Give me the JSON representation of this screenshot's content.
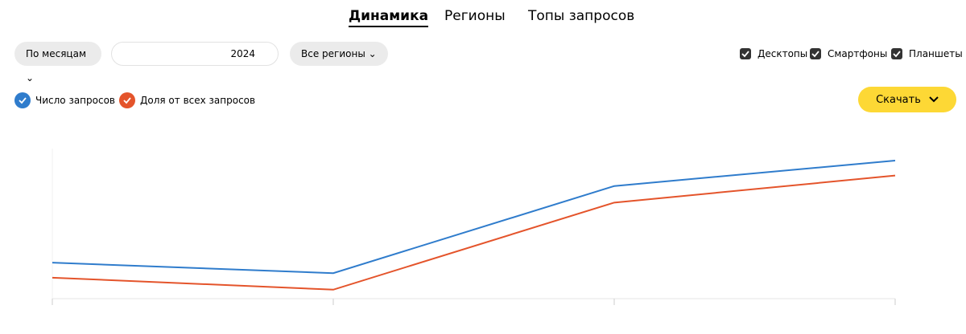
{
  "tabs": [
    "Динамика",
    "Регионы",
    "Топы запросов"
  ],
  "toolbar": {
    "period": "По месяцам",
    "date": "2024",
    "region": "Все регионы",
    "devices": [
      "Десктопы",
      "Смартфоны",
      "Планшеты"
    ]
  },
  "download": "Скачать",
  "chart_data": {
    "type": "line",
    "categories": [
      null,
      null,
      null,
      null
    ],
    "series": [
      {
        "name": "Число запросов",
        "color": "#2f7ccc",
        "values": [
          24,
          17,
          75,
          92
        ]
      },
      {
        "name": "Доля от всех запросов",
        "color": "#e4542b",
        "values": [
          14,
          6,
          64,
          82
        ]
      }
    ],
    "ylim": [
      0,
      100
    ]
  }
}
